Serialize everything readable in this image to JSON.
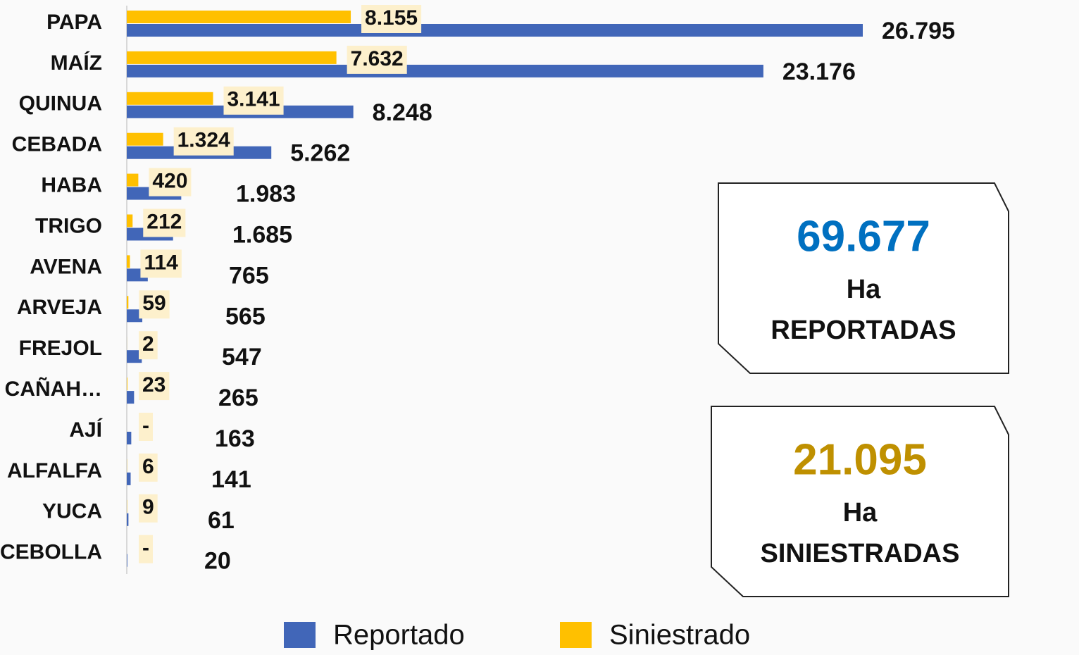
{
  "chart_data": {
    "type": "hbar",
    "categories": [
      "PAPA",
      "MAÍZ",
      "QUINUA",
      "CEBADA",
      "HABA",
      "TRIGO",
      "AVENA",
      "ARVEJA",
      "FREJOL",
      "CAÑAH…",
      "AJÍ",
      "ALFALFA",
      "YUCA",
      "CEBOLLA"
    ],
    "series": [
      {
        "name": "Reportado",
        "color": "#4166b8",
        "values": [
          26795,
          23176,
          8248,
          5262,
          1983,
          1685,
          765,
          565,
          547,
          265,
          163,
          141,
          61,
          20
        ],
        "value_labels": [
          "26.795",
          "23.176",
          "8.248",
          "5.262",
          "1.983",
          "1.685",
          "765",
          "565",
          "547",
          "265",
          "163",
          "141",
          "61",
          "20"
        ]
      },
      {
        "name": "Siniestrado",
        "color": "#ffc000",
        "values": [
          8155,
          7632,
          3141,
          1324,
          420,
          212,
          114,
          59,
          2,
          23,
          0,
          6,
          9,
          0
        ],
        "value_labels": [
          "8.155",
          "7.632",
          "3.141",
          "1.324",
          "420",
          "212",
          "114",
          "59",
          "2",
          "23",
          "-",
          "6",
          "9",
          "-"
        ]
      }
    ],
    "xlim": [
      0,
      30000
    ],
    "summary": [
      {
        "value": "69.677",
        "unit": "Ha",
        "label": "REPORTADAS",
        "color": "#0070c0"
      },
      {
        "value": "21.095",
        "unit": "Ha",
        "label": "SINIESTRADAS",
        "color": "#bf9000"
      }
    ]
  }
}
